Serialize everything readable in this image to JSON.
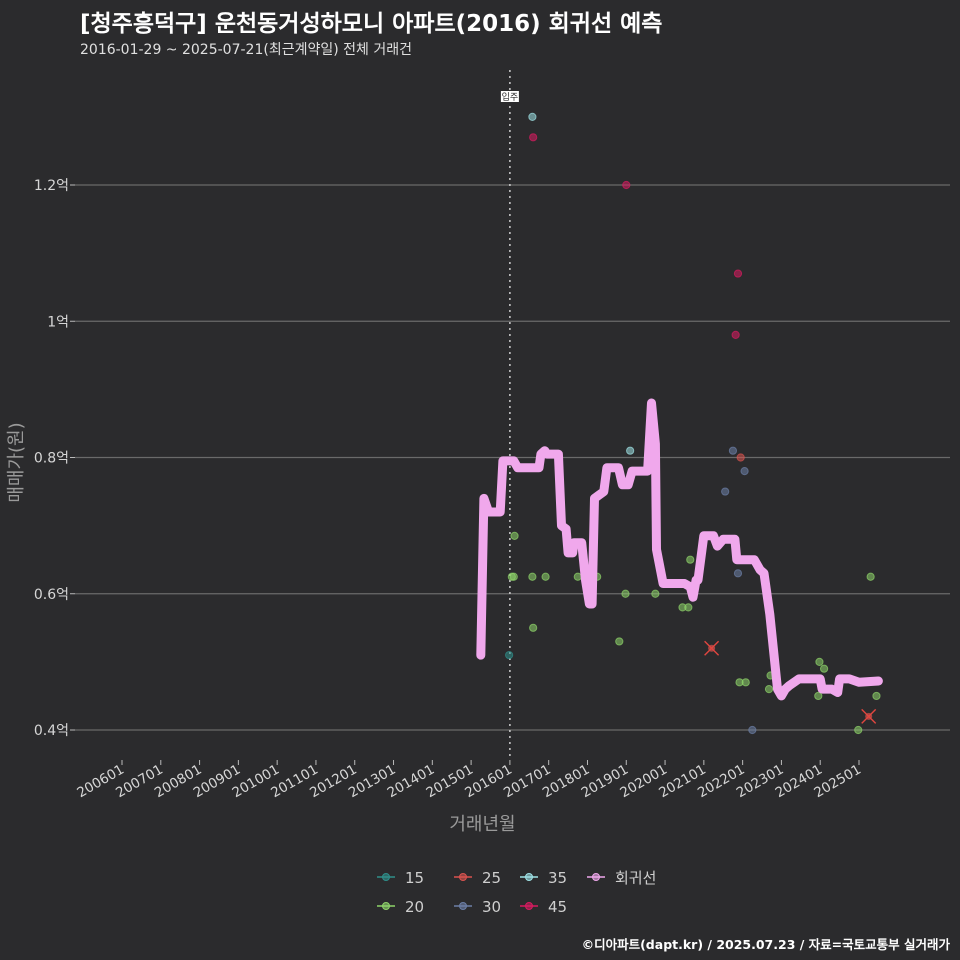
{
  "header": {
    "title": "[청주흥덕구] 운천동거성하모니 아파트(2016) 회귀선 예측",
    "subtitle": "2016-01-29 ~ 2025-07-21(최근계약일) 전체 거래건"
  },
  "footer": {
    "credit": "©디아파트(dapt.kr) / 2025.07.23 / 자료=국토교통부 실거래가"
  },
  "chart_data": {
    "type": "scatter",
    "title": "[청주흥덕구] 운천동거성하모니 아파트(2016) 회귀선 예측",
    "subtitle": "2016-01-29 ~ 2025-07-21(최근계약일) 전체 거래건",
    "xlabel": "거래년월",
    "ylabel": "매매가(원)",
    "xlim": [
      2005.5,
      2027.3
    ],
    "ylim": [
      0.35,
      1.37
    ],
    "x_ticks": [
      2006,
      2007,
      2008,
      2009,
      2010,
      2011,
      2012,
      2013,
      2014,
      2015,
      2016,
      2017,
      2018,
      2019,
      2020,
      2021,
      2022,
      2023,
      2024,
      2025
    ],
    "x_tick_labels": [
      "200601",
      "200701",
      "200801",
      "200901",
      "201001",
      "201101",
      "201201",
      "201301",
      "201401",
      "201501",
      "201601",
      "201701",
      "201801",
      "201901",
      "202001",
      "202101",
      "202201",
      "202301",
      "202401",
      "202501"
    ],
    "y_ticks": [
      0.4,
      0.6,
      0.8,
      1.0,
      1.2
    ],
    "y_tick_labels": [
      "0.4억",
      "0.6억",
      "0.8억",
      "1억",
      "1.2억"
    ],
    "grid": "horizontal",
    "reference_line": {
      "x": 2016.0,
      "label": "입주"
    },
    "colors": {
      "15": "#2f8f8a",
      "20": "#8ed46a",
      "25": "#d9534f",
      "30": "#6c7fa6",
      "35": "#9fe3e6",
      "45": "#d81b60",
      "회귀선": "#f0a8ec"
    },
    "legend": {
      "position": "bottom",
      "items": [
        {
          "key": "15",
          "label": "15"
        },
        {
          "key": "20",
          "label": "20"
        },
        {
          "key": "25",
          "label": "25"
        },
        {
          "key": "30",
          "label": "30"
        },
        {
          "key": "35",
          "label": "35"
        },
        {
          "key": "45",
          "label": "45"
        },
        {
          "key": "회귀선",
          "label": "회귀선"
        }
      ]
    },
    "series": [
      {
        "name": "15",
        "points": [
          [
            2015.98,
            0.51
          ]
        ]
      },
      {
        "name": "20",
        "points": [
          [
            2016.05,
            0.625
          ],
          [
            2016.1,
            0.625
          ],
          [
            2016.12,
            0.685
          ],
          [
            2016.58,
            0.625
          ],
          [
            2016.6,
            0.55
          ],
          [
            2016.92,
            0.625
          ],
          [
            2017.75,
            0.625
          ],
          [
            2018.25,
            0.625
          ],
          [
            2018.82,
            0.53
          ],
          [
            2018.98,
            0.6
          ],
          [
            2019.75,
            0.6
          ],
          [
            2020.45,
            0.58
          ],
          [
            2020.6,
            0.58
          ],
          [
            2020.65,
            0.65
          ],
          [
            2021.92,
            0.47
          ],
          [
            2022.08,
            0.47
          ],
          [
            2022.68,
            0.46
          ],
          [
            2022.72,
            0.48
          ],
          [
            2023.95,
            0.45
          ],
          [
            2023.98,
            0.5
          ],
          [
            2024.1,
            0.49
          ],
          [
            2024.98,
            0.4
          ],
          [
            2025.3,
            0.625
          ],
          [
            2025.45,
            0.45
          ]
        ]
      },
      {
        "name": "25",
        "points": [
          [
            2021.95,
            0.8
          ]
        ]
      },
      {
        "name": "30",
        "points": [
          [
            2021.55,
            0.75
          ],
          [
            2021.75,
            0.81
          ],
          [
            2021.88,
            0.63
          ],
          [
            2022.05,
            0.78
          ],
          [
            2022.25,
            0.4
          ]
        ]
      },
      {
        "name": "35",
        "points": [
          [
            2016.58,
            1.3
          ],
          [
            2019.1,
            0.81
          ]
        ]
      },
      {
        "name": "45",
        "points": [
          [
            2016.6,
            1.27
          ],
          [
            2019.0,
            1.2
          ],
          [
            2021.82,
            0.98
          ],
          [
            2021.88,
            1.07
          ]
        ]
      }
    ],
    "markers_x": [
      [
        2021.2,
        0.52
      ],
      [
        2025.25,
        0.42
      ]
    ],
    "regression": [
      [
        2015.25,
        0.51
      ],
      [
        2015.33,
        0.74
      ],
      [
        2015.45,
        0.72
      ],
      [
        2015.75,
        0.72
      ],
      [
        2015.82,
        0.795
      ],
      [
        2016.1,
        0.795
      ],
      [
        2016.2,
        0.785
      ],
      [
        2016.45,
        0.785
      ],
      [
        2016.75,
        0.785
      ],
      [
        2016.8,
        0.805
      ],
      [
        2016.9,
        0.81
      ],
      [
        2016.95,
        0.805
      ],
      [
        2017.25,
        0.805
      ],
      [
        2017.33,
        0.7
      ],
      [
        2017.45,
        0.695
      ],
      [
        2017.5,
        0.66
      ],
      [
        2017.62,
        0.66
      ],
      [
        2017.65,
        0.675
      ],
      [
        2017.85,
        0.675
      ],
      [
        2017.95,
        0.62
      ],
      [
        2018.05,
        0.585
      ],
      [
        2018.12,
        0.585
      ],
      [
        2018.18,
        0.74
      ],
      [
        2018.3,
        0.745
      ],
      [
        2018.42,
        0.75
      ],
      [
        2018.5,
        0.785
      ],
      [
        2018.8,
        0.785
      ],
      [
        2018.9,
        0.76
      ],
      [
        2019.05,
        0.76
      ],
      [
        2019.15,
        0.78
      ],
      [
        2019.55,
        0.78
      ],
      [
        2019.65,
        0.88
      ],
      [
        2019.75,
        0.82
      ],
      [
        2019.78,
        0.665
      ],
      [
        2019.95,
        0.615
      ],
      [
        2020.5,
        0.615
      ],
      [
        2020.65,
        0.61
      ],
      [
        2020.72,
        0.595
      ],
      [
        2020.8,
        0.62
      ],
      [
        2020.85,
        0.62
      ],
      [
        2021.0,
        0.685
      ],
      [
        2021.25,
        0.685
      ],
      [
        2021.35,
        0.67
      ],
      [
        2021.5,
        0.68
      ],
      [
        2021.8,
        0.68
      ],
      [
        2021.85,
        0.65
      ],
      [
        2022.3,
        0.65
      ],
      [
        2022.45,
        0.635
      ],
      [
        2022.55,
        0.63
      ],
      [
        2022.7,
        0.57
      ],
      [
        2022.9,
        0.46
      ],
      [
        2023.0,
        0.45
      ],
      [
        2023.1,
        0.46
      ],
      [
        2023.2,
        0.465
      ],
      [
        2023.45,
        0.475
      ],
      [
        2023.8,
        0.475
      ],
      [
        2024.0,
        0.475
      ],
      [
        2024.05,
        0.46
      ],
      [
        2024.3,
        0.46
      ],
      [
        2024.45,
        0.455
      ],
      [
        2024.5,
        0.475
      ],
      [
        2024.75,
        0.475
      ],
      [
        2025.0,
        0.47
      ],
      [
        2025.5,
        0.472
      ]
    ]
  }
}
